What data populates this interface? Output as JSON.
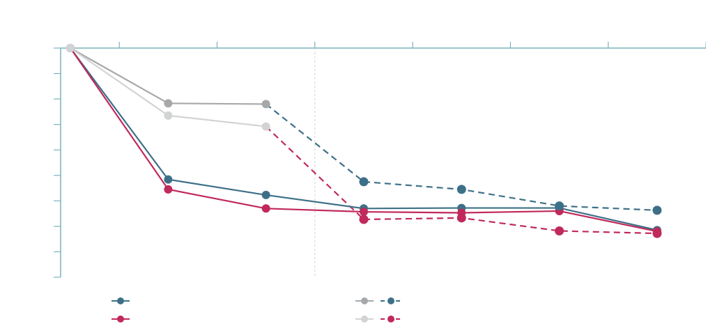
{
  "chart_data": {
    "type": "line",
    "title": "",
    "xlabel": "",
    "ylabel": "",
    "x": [
      0,
      1,
      2,
      3,
      4,
      5,
      6
    ],
    "xlim": [
      -0.1,
      6.5
    ],
    "ylim": [
      0,
      9
    ],
    "axis_position": "top",
    "grid": false,
    "divider_x": 2.5,
    "legend": "bottom",
    "series": [
      {
        "color": "#3d7088",
        "dash": false,
        "values": [
          9,
          3.84,
          3.23,
          2.7,
          2.72,
          2.72,
          1.85
        ]
      },
      {
        "color": "#c0295a",
        "dash": false,
        "values": [
          9,
          3.45,
          2.7,
          2.57,
          2.53,
          2.6,
          1.8
        ]
      },
      {
        "color": "#a6a8aa",
        "dash": false,
        "values": [
          9,
          6.83,
          6.8,
          null,
          null,
          null,
          null
        ]
      },
      {
        "color": "#d2d3d4",
        "dash": false,
        "values": [
          9,
          6.35,
          5.92,
          null,
          null,
          null,
          null
        ]
      },
      {
        "color": "#3d7088",
        "dash": true,
        "values": [
          null,
          null,
          null,
          3.75,
          3.45,
          2.8,
          2.63
        ]
      },
      {
        "color": "#c0295a",
        "dash": true,
        "values": [
          null,
          null,
          null,
          2.27,
          2.33,
          1.82,
          1.72
        ]
      }
    ],
    "connectors": [
      {
        "color": "#3d7088",
        "dash": true,
        "from": [
          2,
          6.8
        ],
        "to": [
          3,
          3.75
        ]
      },
      {
        "color": "#c0295a",
        "dash": true,
        "from": [
          2,
          5.92
        ],
        "to": [
          3,
          2.27
        ]
      }
    ],
    "legend_entries": [
      {
        "colors": [
          "#3d7088"
        ],
        "dash": false
      },
      {
        "colors": [
          "#c0295a"
        ],
        "dash": false
      },
      {
        "colors": [
          "#a6a8aa",
          "#3d7088"
        ],
        "dash": true
      },
      {
        "colors": [
          "#d2d3d4",
          "#c0295a"
        ],
        "dash": true
      }
    ]
  }
}
